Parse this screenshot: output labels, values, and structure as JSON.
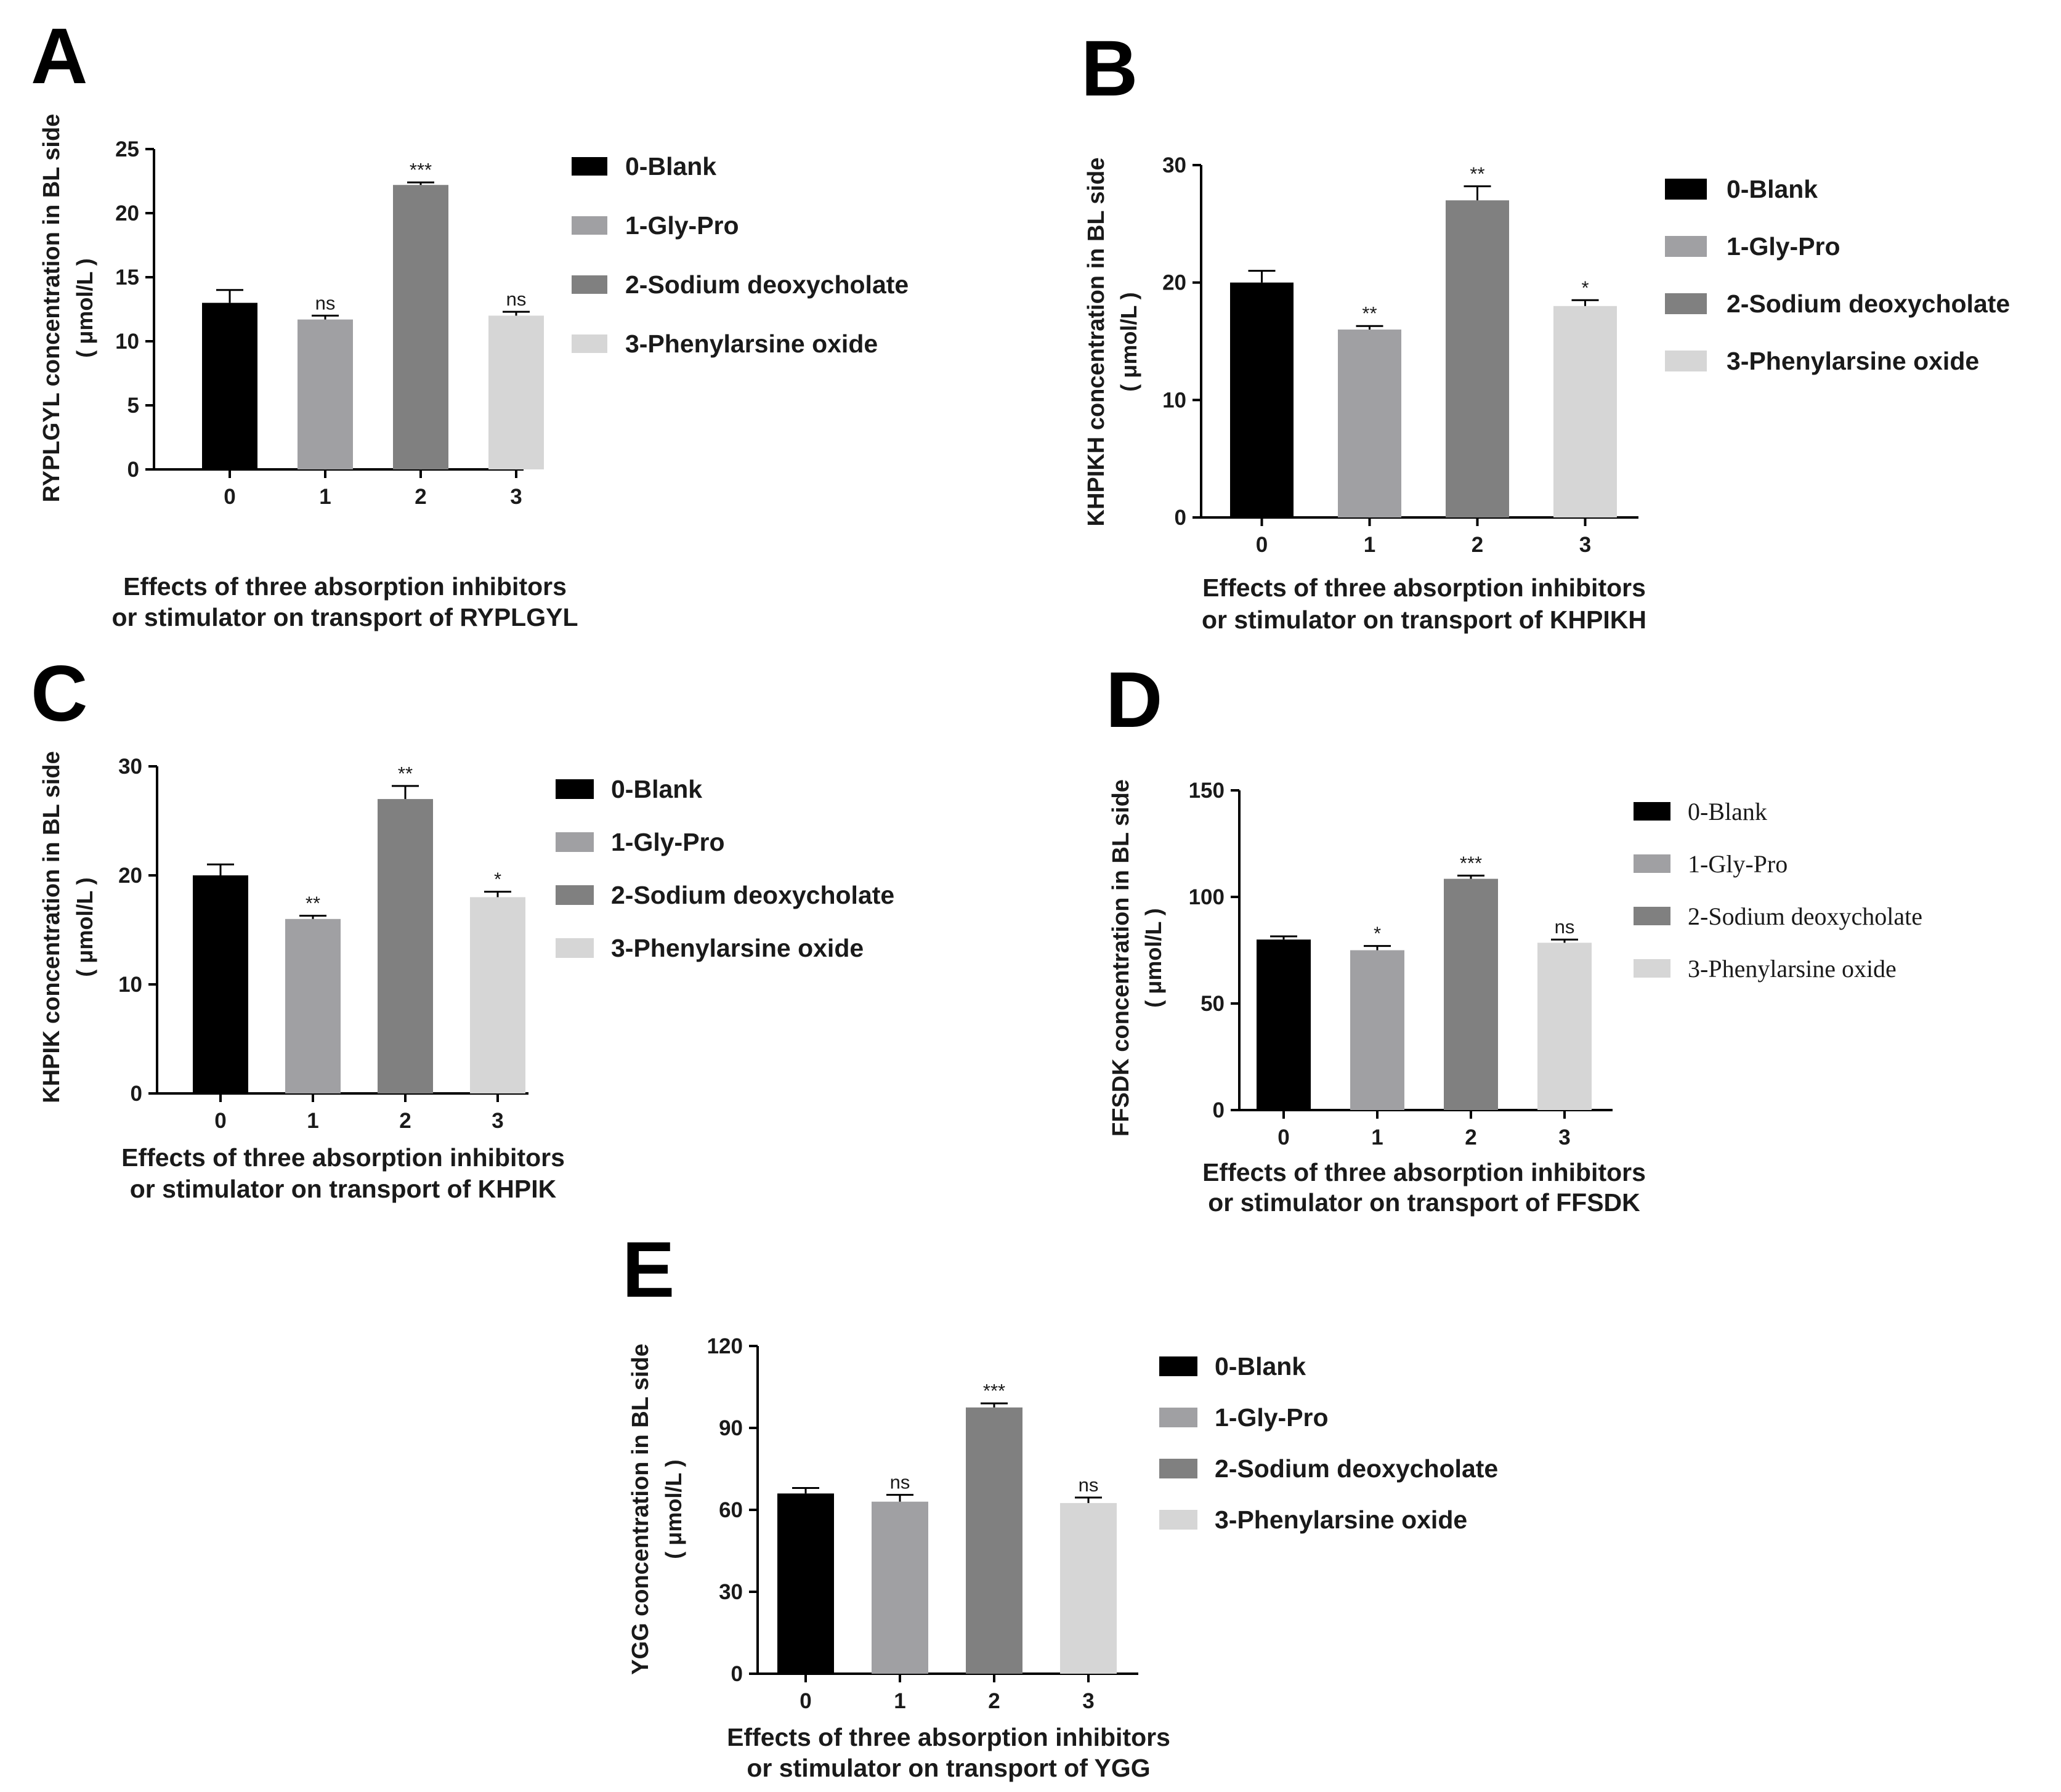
{
  "colors": {
    "blank": "#000000",
    "gly_pro": "#a0a0a3",
    "sodium": "#808080",
    "phenyl": "#d6d6d6",
    "axis": "#000000"
  },
  "chart_data": [
    {
      "panel": "A",
      "type": "bar",
      "categories": [
        "0",
        "1",
        "2",
        "3"
      ],
      "values": [
        13,
        11.7,
        22.2,
        12
      ],
      "errors": [
        1.0,
        0.3,
        0.2,
        0.3
      ],
      "significance": [
        "",
        "ns",
        "***",
        "ns"
      ],
      "ylim": [
        0,
        25
      ],
      "yticks": [
        "0",
        "5",
        "10",
        "15",
        "20",
        "25"
      ],
      "ylabel": "RYPLGYL concentration in BL side",
      "ylabel_unit": "( μmol/L )",
      "caption": [
        "Effects of three absorption inhibitors",
        "or stimulator on transport of RYPLGYL"
      ],
      "legend": [
        "0-Blank",
        "1-Gly-Pro",
        "2-Sodium deoxycholate",
        "3-Phenylarsine oxide"
      ]
    },
    {
      "panel": "B",
      "type": "bar",
      "categories": [
        "0",
        "1",
        "2",
        "3"
      ],
      "values": [
        20,
        16,
        27,
        18
      ],
      "errors": [
        1.0,
        0.3,
        1.2,
        0.5
      ],
      "significance": [
        "",
        "**",
        "**",
        "*"
      ],
      "ylim": [
        0,
        30
      ],
      "yticks": [
        "0",
        "10",
        "20",
        "30"
      ],
      "ylabel": "KHPIKH concentration in BL side",
      "ylabel_unit": "( μmol/L )",
      "caption": [
        "Effects of three absorption inhibitors",
        "or stimulator on transport of KHPIKH"
      ],
      "legend": [
        "0-Blank",
        "1-Gly-Pro",
        "2-Sodium deoxycholate",
        "3-Phenylarsine oxide"
      ]
    },
    {
      "panel": "C",
      "type": "bar",
      "categories": [
        "0",
        "1",
        "2",
        "3"
      ],
      "values": [
        20,
        16,
        27,
        18
      ],
      "errors": [
        1.0,
        0.3,
        1.2,
        0.5
      ],
      "significance": [
        "",
        "**",
        "**",
        "*"
      ],
      "ylim": [
        0,
        30
      ],
      "yticks": [
        "0",
        "10",
        "20",
        "30"
      ],
      "ylabel": "KHPIK concentration in BL side",
      "ylabel_unit": "( μmol/L )",
      "caption": [
        "Effects of three absorption inhibitors",
        "or stimulator on transport of KHPIK"
      ],
      "legend": [
        "0-Blank",
        "1-Gly-Pro",
        "2-Sodium deoxycholate",
        "3-Phenylarsine oxide"
      ]
    },
    {
      "panel": "D",
      "type": "bar",
      "categories": [
        "0",
        "1",
        "2",
        "3"
      ],
      "values": [
        80,
        75,
        108.5,
        78.5
      ],
      "errors": [
        1.5,
        2.0,
        1.5,
        1.5
      ],
      "significance": [
        "",
        "*",
        "***",
        "ns"
      ],
      "ylim": [
        0,
        150
      ],
      "yticks": [
        "0",
        "50",
        "100",
        "150"
      ],
      "ylabel": "FFSDK concentration in BL side",
      "ylabel_unit": "( μmol/L )",
      "caption": [
        "Effects of three absorption inhibitors",
        "or stimulator on transport of FFSDK"
      ],
      "legend": [
        "0-Blank",
        "1-Gly-Pro",
        "2-Sodium deoxycholate",
        "3-Phenylarsine oxide"
      ]
    },
    {
      "panel": "E",
      "type": "bar",
      "categories": [
        "0",
        "1",
        "2",
        "3"
      ],
      "values": [
        66,
        63,
        97.5,
        62.5
      ],
      "errors": [
        2.0,
        2.5,
        1.5,
        2.0
      ],
      "significance": [
        "",
        "ns",
        "***",
        "ns"
      ],
      "ylim": [
        0,
        120
      ],
      "yticks": [
        "0",
        "30",
        "60",
        "90",
        "120"
      ],
      "ylabel": "YGG concentration in BL side",
      "ylabel_unit": "( μmol/L )",
      "caption": [
        "Effects of three absorption inhibitors",
        "or stimulator on transport of YGG"
      ],
      "legend": [
        "0-Blank",
        "1-Gly-Pro",
        "2-Sodium deoxycholate",
        "3-Phenylarsine oxide"
      ]
    }
  ]
}
